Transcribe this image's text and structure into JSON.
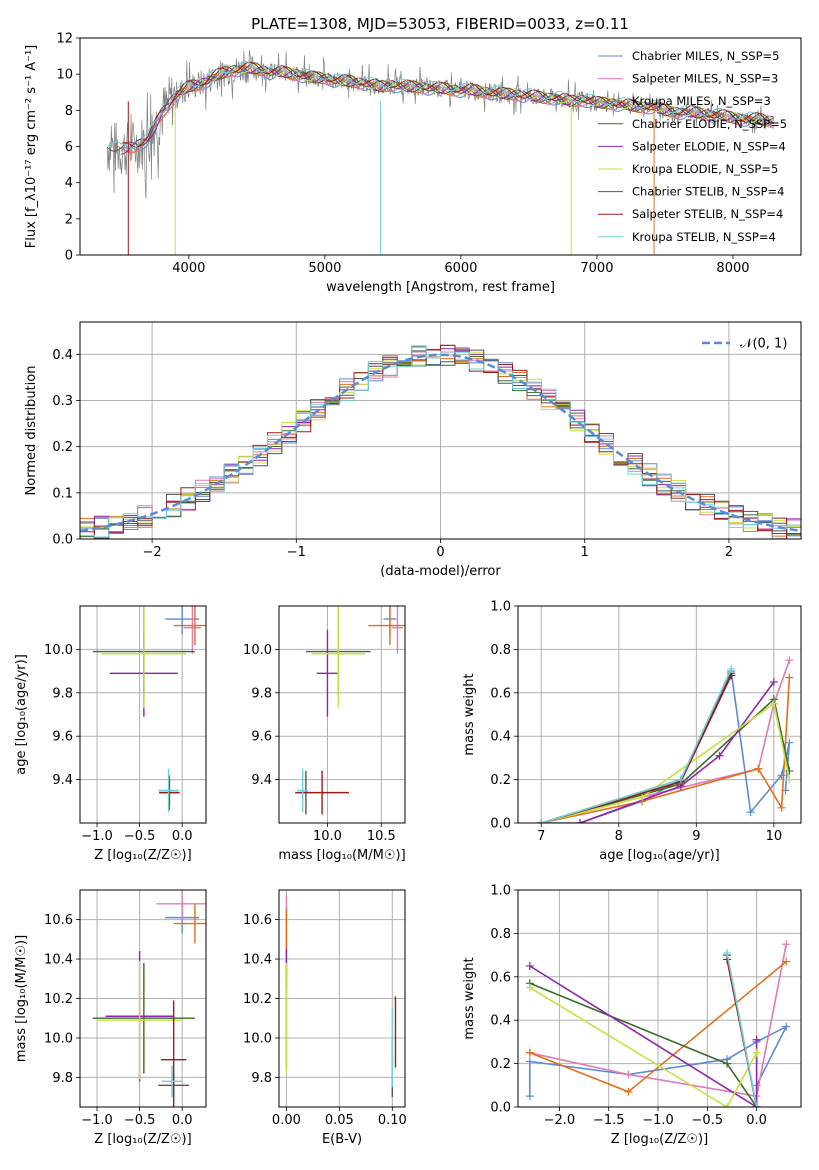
{
  "figure": {
    "title": "PLATE=1308, MJD=53053, FIBERID=0033, z=0.11"
  },
  "colors": {
    "Chabrier MILES": "#5b8bd6",
    "Salpeter MILES": "#e07ab8",
    "Kroupa MILES": "#e07020",
    "Chabrier ELODIE": "#3a6b2a",
    "Salpeter ELODIE": "#8e24aa",
    "Kroupa ELODIE": "#c8e040",
    "Chabrier STELIB": "#555555",
    "Salpeter STELIB": "#9b1b1b",
    "Kroupa STELIB": "#6fd0d8",
    "normal_curve": "#5b8bd6"
  },
  "chart_data": [
    {
      "id": "spectrum",
      "type": "line",
      "title": "PLATE=1308, MJD=53053, FIBERID=0033, z=0.11",
      "xlabel": "wavelength [Angstrom, rest frame]",
      "ylabel": "Flux [f_λ10⁻¹⁷ erg cm⁻² s⁻¹ A⁻¹]",
      "xlim": [
        3200,
        8500
      ],
      "ylim": [
        0,
        12
      ],
      "xticks": [
        "4000",
        "5000",
        "6000",
        "7000",
        "8000"
      ],
      "yticks": [
        "0",
        "2",
        "4",
        "6",
        "8",
        "10",
        "12"
      ],
      "legend_position": "top-right",
      "series": [
        {
          "name": "Chabrier MILES, N_SSP=5"
        },
        {
          "name": "Salpeter MILES, N_SSP=3"
        },
        {
          "name": "Kroupa MILES, N_SSP=3"
        },
        {
          "name": "Chabrier ELODIE, N_SSP=5"
        },
        {
          "name": "Salpeter ELODIE, N_SSP=4"
        },
        {
          "name": "Kroupa ELODIE, N_SSP=5"
        },
        {
          "name": "Chabrier STELIB, N_SSP=4"
        },
        {
          "name": "Salpeter STELIB, N_SSP=4"
        },
        {
          "name": "Kroupa STELIB, N_SSP=4"
        }
      ],
      "data_wavelength": [
        3400,
        3500,
        3600,
        3700,
        3800,
        3900,
        4000,
        4100,
        4200,
        4300,
        4400,
        4500,
        4600,
        4700,
        4800,
        4900,
        5000,
        5100,
        5200,
        5300,
        5400,
        5500,
        5600,
        5700,
        5800,
        5900,
        6000,
        6100,
        6200,
        6300,
        6400,
        6500,
        6600,
        6700,
        6800,
        6900,
        7000,
        7100,
        7200,
        7300,
        7400,
        7500,
        7600,
        7700,
        7800,
        7900,
        8000,
        8100,
        8200,
        8300
      ],
      "data_flux": [
        6.0,
        5.8,
        6.0,
        6.4,
        7.8,
        8.8,
        9.3,
        9.5,
        9.9,
        10.2,
        10.3,
        10.3,
        10.1,
        10.1,
        10.0,
        9.8,
        9.8,
        9.6,
        9.6,
        9.5,
        9.3,
        9.4,
        9.3,
        9.3,
        9.2,
        9.2,
        9.1,
        9.1,
        9.0,
        8.9,
        8.9,
        8.8,
        8.7,
        8.7,
        8.5,
        8.6,
        8.4,
        8.4,
        8.3,
        8.2,
        8.2,
        8.0,
        7.9,
        7.9,
        7.8,
        7.7,
        7.6,
        7.5,
        7.5,
        7.4
      ],
      "model_start": 3500,
      "model_end": 8300
    },
    {
      "id": "residuals",
      "type": "bar",
      "xlabel": "(data-model)/error",
      "ylabel": "Normed distribution",
      "xlim": [
        -2.5,
        2.5
      ],
      "ylim": [
        0,
        0.47
      ],
      "xticks": [
        "−2",
        "−1",
        "0",
        "1",
        "2"
      ],
      "yticks": [
        "0.0",
        "0.1",
        "0.2",
        "0.3",
        "0.4"
      ],
      "legend": "𝒩(0, 1)",
      "legend_position": "top-right",
      "bin_width": 0.1
    },
    {
      "id": "age-vs-Z",
      "type": "scatter",
      "xlabel": "Z [log₁₀(Z/Z☉)]",
      "ylabel": "age  [log₁₀(age/yr)]",
      "xlim": [
        -1.2,
        0.28
      ],
      "ylim": [
        9.2,
        10.2
      ],
      "xticks": [
        "−1.0",
        "−0.5",
        "0.0"
      ],
      "yticks": [
        "9.4",
        "9.6",
        "9.8",
        "10.0"
      ],
      "points": [
        {
          "series": "Chabrier MILES",
          "x": 0.0,
          "xerr": 0.2,
          "y": 10.14,
          "yerr": 0.07
        },
        {
          "series": "Salpeter MILES",
          "x": 0.12,
          "xerr": 0.1,
          "y": 10.1,
          "yerr": 0.12
        },
        {
          "series": "Kroupa MILES",
          "x": 0.15,
          "xerr": 0.25,
          "y": 10.11,
          "yerr": 0.09
        },
        {
          "series": "Chabrier ELODIE",
          "x": -0.45,
          "xerr": 0.6,
          "y": 9.99,
          "yerr": 0.2
        },
        {
          "series": "Salpeter ELODIE",
          "x": -0.45,
          "xerr": 0.4,
          "y": 9.89,
          "yerr": 0.2
        },
        {
          "series": "Kroupa ELODIE",
          "x": -0.45,
          "xerr": 0.5,
          "y": 9.98,
          "yerr": 0.25
        },
        {
          "series": "Chabrier STELIB",
          "x": -0.15,
          "xerr": 0.12,
          "y": 9.34,
          "yerr": 0.08
        },
        {
          "series": "Salpeter STELIB",
          "x": -0.15,
          "xerr": 0.12,
          "y": 9.34,
          "yerr": 0.06
        },
        {
          "series": "Kroupa STELIB",
          "x": -0.16,
          "xerr": 0.12,
          "y": 9.35,
          "yerr": 0.1
        }
      ]
    },
    {
      "id": "age-vs-mass",
      "type": "scatter",
      "xlabel": "mass [log₁₀(M/M☉)]",
      "ylabel": "",
      "xlim": [
        9.55,
        10.72
      ],
      "ylim": [
        9.2,
        10.2
      ],
      "xticks": [
        "10.0",
        "10.5"
      ],
      "yticks": [
        "9.4",
        "9.6",
        "9.8",
        "10.0"
      ],
      "points": [
        {
          "series": "Chabrier MILES",
          "x": 10.58,
          "xerr": 0.06,
          "y": 10.14,
          "yerr": 0.07
        },
        {
          "series": "Salpeter MILES",
          "x": 10.65,
          "xerr": 0.05,
          "y": 10.1,
          "yerr": 0.12
        },
        {
          "series": "Kroupa MILES",
          "x": 10.58,
          "xerr": 0.2,
          "y": 10.11,
          "yerr": 0.09
        },
        {
          "series": "Chabrier ELODIE",
          "x": 10.1,
          "xerr": 0.3,
          "y": 9.99,
          "yerr": 0.2
        },
        {
          "series": "Salpeter ELODIE",
          "x": 10.0,
          "xerr": 0.1,
          "y": 9.89,
          "yerr": 0.2
        },
        {
          "series": "Kroupa ELODIE",
          "x": 10.1,
          "xerr": 0.25,
          "y": 9.98,
          "yerr": 0.25
        },
        {
          "series": "Chabrier STELIB",
          "x": 9.8,
          "xerr": 0.05,
          "y": 9.34,
          "yerr": 0.1
        },
        {
          "series": "Salpeter STELIB",
          "x": 9.95,
          "xerr": 0.25,
          "y": 9.34,
          "yerr": 0.1
        },
        {
          "series": "Kroupa STELIB",
          "x": 9.77,
          "xerr": 0.05,
          "y": 9.35,
          "yerr": 0.1
        }
      ]
    },
    {
      "id": "mass-weight-vs-age",
      "type": "line",
      "xlabel": "age  [log₁₀(age/yr)]",
      "ylabel": "mass weight",
      "xlim": [
        6.7,
        10.35
      ],
      "ylim": [
        0,
        1.0
      ],
      "xticks": [
        "7",
        "8",
        "9",
        "10"
      ],
      "yticks": [
        "0.0",
        "0.2",
        "0.4",
        "0.6",
        "0.8",
        "1.0"
      ],
      "series": [
        {
          "name": "Chabrier MILES",
          "x": [
            7.0,
            7.5,
            8.3,
            8.8,
            9.45,
            9.7,
            10.1,
            10.2,
            10.15
          ],
          "y": [
            0.0,
            0.0,
            0.1,
            0.2,
            0.7,
            0.05,
            0.22,
            0.37,
            0.15
          ]
        },
        {
          "name": "Salpeter MILES",
          "x": [
            7.0,
            8.3,
            9.8,
            10.0,
            10.2
          ],
          "y": [
            0.0,
            0.12,
            0.25,
            0.55,
            0.75
          ]
        },
        {
          "name": "Kroupa MILES",
          "x": [
            7.0,
            8.3,
            9.8,
            10.1,
            10.2
          ],
          "y": [
            0.0,
            0.1,
            0.25,
            0.07,
            0.67
          ]
        },
        {
          "name": "Chabrier ELODIE",
          "x": [
            7.0,
            8.8,
            10.0,
            10.2
          ],
          "y": [
            0.0,
            0.18,
            0.57,
            0.24
          ]
        },
        {
          "name": "Salpeter ELODIE",
          "x": [
            7.5,
            8.8,
            9.3,
            10.0
          ],
          "y": [
            0.0,
            0.17,
            0.31,
            0.65
          ]
        },
        {
          "name": "Kroupa ELODIE",
          "x": [
            7.0,
            8.3,
            10.0,
            10.2
          ],
          "y": [
            0.0,
            0.12,
            0.55,
            0.2
          ]
        },
        {
          "name": "Chabrier STELIB",
          "x": [
            7.0,
            8.8,
            9.45
          ],
          "y": [
            0.0,
            0.2,
            0.69
          ]
        },
        {
          "name": "Salpeter STELIB",
          "x": [
            7.0,
            8.8,
            9.45
          ],
          "y": [
            0.0,
            0.19,
            0.68
          ]
        },
        {
          "name": "Kroupa STELIB",
          "x": [
            7.0,
            8.8,
            9.45
          ],
          "y": [
            0.0,
            0.2,
            0.71
          ]
        }
      ]
    },
    {
      "id": "mass-vs-Z",
      "type": "scatter",
      "xlabel": "Z [log₁₀(Z/Z☉)]",
      "ylabel": "mass [log₁₀(M/M☉)]",
      "xlim": [
        -1.2,
        0.28
      ],
      "ylim": [
        9.65,
        10.75
      ],
      "xticks": [
        "−1.0",
        "−0.5",
        "0.0"
      ],
      "yticks": [
        "9.8",
        "10.0",
        "10.2",
        "10.4",
        "10.6"
      ],
      "points": [
        {
          "series": "Chabrier MILES",
          "x": 0.0,
          "xerr": 0.2,
          "y": 10.61,
          "yerr": 0.08
        },
        {
          "series": "Salpeter MILES",
          "x": 0.0,
          "xerr": 0.3,
          "y": 10.68,
          "yerr": 0.08
        },
        {
          "series": "Kroupa MILES",
          "x": 0.15,
          "xerr": 0.25,
          "y": 10.58,
          "yerr": 0.1
        },
        {
          "series": "Chabrier ELODIE",
          "x": -0.45,
          "xerr": 0.6,
          "y": 10.1,
          "yerr": 0.28
        },
        {
          "series": "Salpeter ELODIE",
          "x": -0.5,
          "xerr": 0.4,
          "y": 10.11,
          "yerr": 0.33
        },
        {
          "series": "Kroupa ELODIE",
          "x": -0.5,
          "xerr": 0.5,
          "y": 10.09,
          "yerr": 0.3
        },
        {
          "series": "Chabrier STELIB",
          "x": -0.1,
          "xerr": 0.18,
          "y": 9.76,
          "yerr": 0.07
        },
        {
          "series": "Salpeter STELIB",
          "x": -0.1,
          "xerr": 0.15,
          "y": 9.89,
          "yerr": 0.3
        },
        {
          "series": "Kroupa STELIB",
          "x": -0.12,
          "xerr": 0.12,
          "y": 9.78,
          "yerr": 0.08
        }
      ]
    },
    {
      "id": "mass-vs-EBV",
      "type": "scatter",
      "xlabel": "E(B-V)",
      "ylabel": "",
      "xlim": [
        -0.007,
        0.112
      ],
      "ylim": [
        9.65,
        10.75
      ],
      "xticks": [
        "0.00",
        "0.05",
        "0.10"
      ],
      "yticks": [
        "9.8",
        "10.0",
        "10.2",
        "10.4",
        "10.6"
      ],
      "points": [
        {
          "series": "Chabrier MILES",
          "x": 0.0,
          "xerr": 0,
          "y": 10.55,
          "yerr": 0.12
        },
        {
          "series": "Salpeter MILES",
          "x": 0.0,
          "xerr": 0,
          "y": 10.6,
          "yerr": 0.12
        },
        {
          "series": "Kroupa MILES",
          "x": 0.0,
          "xerr": 0,
          "y": 10.5,
          "yerr": 0.15
        },
        {
          "series": "Chabrier ELODIE",
          "x": 0.0,
          "xerr": 0,
          "y": 10.1,
          "yerr": 0.25
        },
        {
          "series": "Salpeter ELODIE",
          "x": 0.0,
          "xerr": 0,
          "y": 10.35,
          "yerr": 0.1
        },
        {
          "series": "Kroupa ELODIE",
          "x": 0.0,
          "xerr": 0,
          "y": 10.1,
          "yerr": 0.28
        },
        {
          "series": "Chabrier STELIB",
          "x": 0.1,
          "xerr": 0,
          "y": 9.85,
          "yerr": 0.15
        },
        {
          "series": "Salpeter STELIB",
          "x": 0.103,
          "xerr": 0,
          "y": 10.03,
          "yerr": 0.18
        },
        {
          "series": "Kroupa STELIB",
          "x": 0.1,
          "xerr": 0,
          "y": 9.95,
          "yerr": 0.2
        }
      ]
    },
    {
      "id": "mass-weight-vs-Z",
      "type": "line",
      "xlabel": "Z [log₁₀(Z/Z☉)]",
      "ylabel": "mass weight",
      "xlim": [
        -2.42,
        0.45
      ],
      "ylim": [
        0,
        1.0
      ],
      "xticks": [
        "−2.0",
        "−1.5",
        "−1.0",
        "−0.5",
        "0.0"
      ],
      "yticks": [
        "0.0",
        "0.2",
        "0.4",
        "0.6",
        "0.8",
        "1.0"
      ],
      "series": [
        {
          "name": "Chabrier MILES",
          "x": [
            -2.3,
            -2.3,
            -1.3,
            -0.3,
            0.0,
            0.3,
            0.0
          ],
          "y": [
            0.05,
            0.21,
            0.15,
            0.22,
            0.3,
            0.37,
            0.1
          ]
        },
        {
          "name": "Salpeter MILES",
          "x": [
            -2.3,
            -1.3,
            0.0,
            0.3
          ],
          "y": [
            0.25,
            0.15,
            0.05,
            0.75
          ]
        },
        {
          "name": "Kroupa MILES",
          "x": [
            -2.3,
            -1.3,
            0.3
          ],
          "y": [
            0.25,
            0.07,
            0.67
          ]
        },
        {
          "name": "Chabrier ELODIE",
          "x": [
            -2.3,
            -0.3,
            0.0
          ],
          "y": [
            0.57,
            0.2,
            0.0
          ]
        },
        {
          "name": "Salpeter ELODIE",
          "x": [
            -2.3,
            0.0,
            0.0
          ],
          "y": [
            0.65,
            0.0,
            0.31
          ]
        },
        {
          "name": "Kroupa ELODIE",
          "x": [
            -2.3,
            -0.3,
            0.0
          ],
          "y": [
            0.55,
            0.0,
            0.25
          ]
        },
        {
          "name": "Chabrier STELIB",
          "x": [
            -0.3,
            0.0
          ],
          "y": [
            0.7,
            0.0
          ]
        },
        {
          "name": "Salpeter STELIB",
          "x": [
            -0.3,
            0.0
          ],
          "y": [
            0.68,
            0.0
          ]
        },
        {
          "name": "Kroupa STELIB",
          "x": [
            -0.3,
            0.0
          ],
          "y": [
            0.71,
            0.0
          ]
        }
      ]
    }
  ]
}
